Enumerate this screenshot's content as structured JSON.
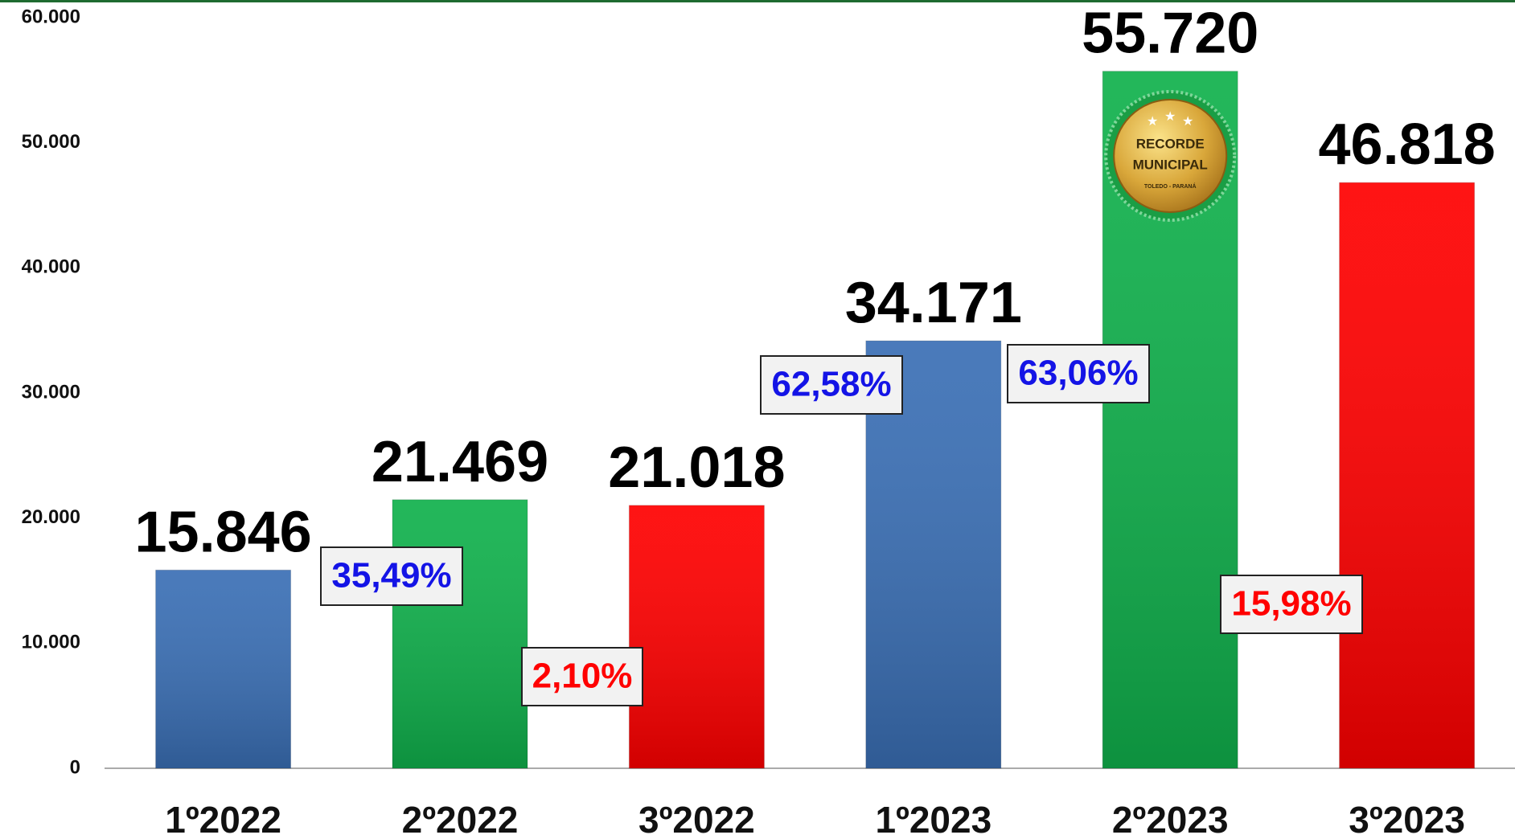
{
  "chart_data": {
    "type": "bar",
    "categories": [
      "1º2022",
      "2º2022",
      "3º2022",
      "1º2023",
      "2º2023",
      "3º2023"
    ],
    "values": [
      15846,
      21469,
      21018,
      34171,
      55720,
      46818
    ],
    "value_labels": [
      "15.846",
      "21.469",
      "21.018",
      "34.171",
      "55.720",
      "46.818"
    ],
    "colors": [
      "#3a6fb5",
      "#10b14c",
      "#ff0000",
      "#3a6fb5",
      "#10b14c",
      "#ff0000"
    ],
    "ylim": [
      0,
      60000
    ],
    "yticks": [
      0,
      {
        "value": 10000,
        "label": "10.000"
      },
      {
        "value": 20000,
        "label": "20.000"
      },
      {
        "value": 30000,
        "label": "30.000"
      },
      {
        "value": 40000,
        "label": "40.000"
      },
      {
        "value": 50000,
        "label": "50.000"
      },
      {
        "value": 60000,
        "label": "60.000"
      }
    ],
    "annotations": [
      {
        "text": "35,49%",
        "color": "#1414e6"
      },
      {
        "text": "2,10%",
        "color": "#ff0000"
      },
      {
        "text": "62,58%",
        "color": "#1414e6"
      },
      {
        "text": "63,06%",
        "color": "#1414e6"
      },
      {
        "text": "15,98%",
        "color": "#ff0000"
      }
    ],
    "badge": {
      "line1": "RECORDE",
      "line2": "MUNICIPAL",
      "line3": "TOLEDO - PARANÁ"
    }
  }
}
